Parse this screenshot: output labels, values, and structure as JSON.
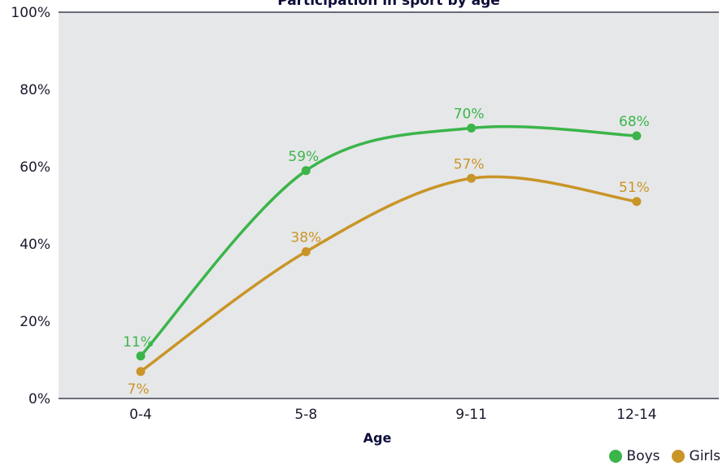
{
  "chart_data": {
    "type": "line",
    "title": "Participation in sport by age",
    "xlabel": "Age",
    "ylabel": "",
    "categories": [
      "0-4",
      "5-8",
      "9-11",
      "12-14"
    ],
    "ylim": [
      0,
      100
    ],
    "yticks": [
      "0%",
      "20%",
      "40%",
      "60%",
      "80%",
      "100%"
    ],
    "grid": false,
    "legend_position": "bottom-right",
    "series": [
      {
        "name": "Boys",
        "color": "#3bb54a",
        "values": [
          11,
          59,
          70,
          68
        ],
        "labels": [
          "11%",
          "59%",
          "70%",
          "68%"
        ]
      },
      {
        "name": "Girls",
        "color": "#c99527",
        "values": [
          7,
          38,
          57,
          51
        ],
        "labels": [
          "7%",
          "38%",
          "57%",
          "51%"
        ]
      }
    ]
  },
  "colors": {
    "plot_background": "#e6e7e9",
    "axis": "#1a1a2e"
  }
}
